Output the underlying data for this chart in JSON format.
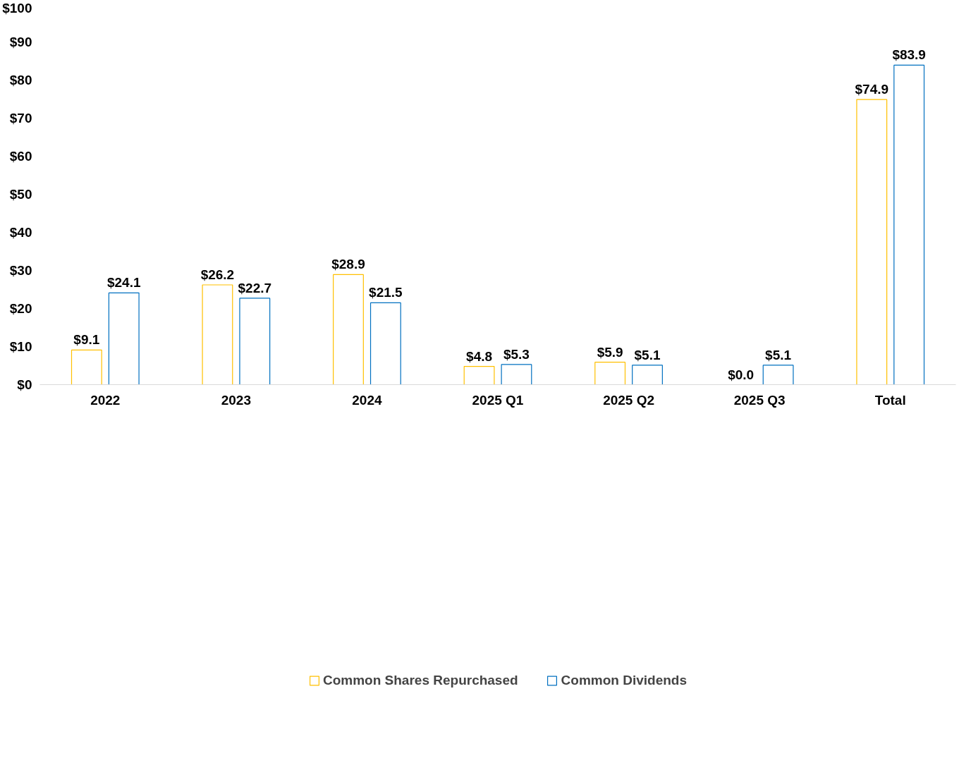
{
  "chart_data": {
    "type": "bar",
    "categories": [
      "2022",
      "2023",
      "2024",
      "2025 Q1",
      "2025 Q2",
      "2025 Q3",
      "Total"
    ],
    "series": [
      {
        "name": "Common Shares Repurchased",
        "color": "#ffc000",
        "values": [
          9.1,
          26.2,
          28.9,
          4.8,
          5.9,
          0.0,
          74.9
        ],
        "value_labels": [
          "$9.1",
          "$26.2",
          "$28.9",
          "$4.8",
          "$5.9",
          "$0.0",
          "$74.9"
        ]
      },
      {
        "name": "Common Dividends",
        "color": "#0070c0",
        "values": [
          24.1,
          22.7,
          21.5,
          5.3,
          5.1,
          5.1,
          83.9
        ],
        "value_labels": [
          "$24.1",
          "$22.7",
          "$21.5",
          "$5.3",
          "$5.1",
          "$5.1",
          "$83.9"
        ]
      }
    ],
    "ylim": [
      0,
      100
    ],
    "yticks": [
      {
        "value": 0,
        "label": "$0"
      },
      {
        "value": 10,
        "label": "$10"
      },
      {
        "value": 20,
        "label": "$20"
      },
      {
        "value": 30,
        "label": "$30"
      },
      {
        "value": 40,
        "label": "$40"
      },
      {
        "value": 50,
        "label": "$50"
      },
      {
        "value": 60,
        "label": "$60"
      },
      {
        "value": 70,
        "label": "$70"
      },
      {
        "value": 80,
        "label": "$80"
      },
      {
        "value": 90,
        "label": "$90"
      },
      {
        "value": 100,
        "label": "$100"
      }
    ],
    "grid": false,
    "legend": "bottom"
  }
}
